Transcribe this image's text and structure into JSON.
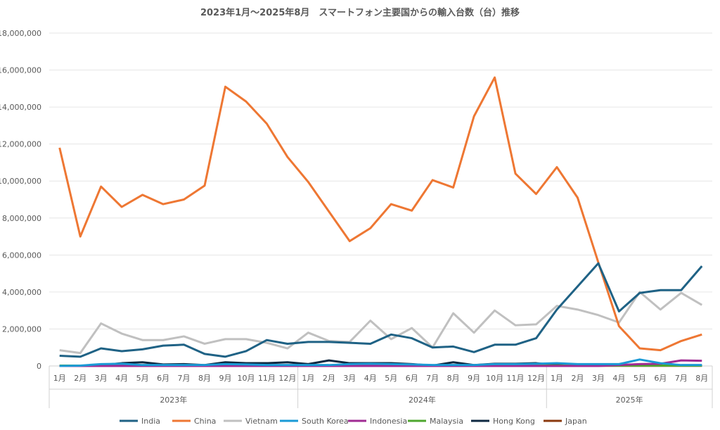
{
  "chart_data": {
    "type": "line",
    "title": "2023年1月～2025年8月　スマートフォン主要国からの輸入台数（台）推移",
    "ylim": [
      0,
      18000000
    ],
    "yticks": [
      "0",
      "2,000,000",
      "4,000,000",
      "6,000,000",
      "8,000,000",
      "10,000,000",
      "12,000,000",
      "14,000,000",
      "16,000,000",
      "18,000,000"
    ],
    "grid": true,
    "legend_position": "bottom",
    "months": [
      "1月",
      "2月",
      "3月",
      "4月",
      "5月",
      "6月",
      "7月",
      "8月",
      "9月",
      "10月",
      "11月",
      "12月",
      "1月",
      "2月",
      "3月",
      "4月",
      "5月",
      "6月",
      "7月",
      "8月",
      "9月",
      "10月",
      "11月",
      "12月",
      "1月",
      "2月",
      "3月",
      "4月",
      "5月",
      "6月",
      "7月",
      "8月"
    ],
    "years": [
      {
        "label": "2023年",
        "count": 12
      },
      {
        "label": "2024年",
        "count": 12
      },
      {
        "label": "2025年",
        "count": 8
      }
    ],
    "series": [
      {
        "name": "India",
        "color": "#1f6285",
        "values": [
          550000,
          500000,
          950000,
          800000,
          900000,
          1100000,
          1150000,
          650000,
          500000,
          800000,
          1400000,
          1200000,
          1300000,
          1300000,
          1250000,
          1200000,
          1700000,
          1500000,
          1000000,
          1050000,
          750000,
          1150000,
          1150000,
          1500000,
          3050000,
          4300000,
          5550000,
          2950000,
          3950000,
          4100000,
          4100000,
          5400000
        ]
      },
      {
        "name": "China",
        "color": "#ee7733",
        "values": [
          11800000,
          7000000,
          9700000,
          8600000,
          9250000,
          8750000,
          9000000,
          9750000,
          15100000,
          14300000,
          13100000,
          11300000,
          9950000,
          8350000,
          6750000,
          7450000,
          8750000,
          8400000,
          10050000,
          9650000,
          13500000,
          15600000,
          10400000,
          9300000,
          10750000,
          9100000,
          5600000,
          2150000,
          950000,
          850000,
          1350000,
          1700000
        ]
      },
      {
        "name": "Vietnam",
        "color": "#c0c0c0",
        "values": [
          850000,
          700000,
          2300000,
          1750000,
          1400000,
          1400000,
          1600000,
          1200000,
          1450000,
          1450000,
          1250000,
          950000,
          1800000,
          1350000,
          1300000,
          2450000,
          1450000,
          2050000,
          1000000,
          2850000,
          1800000,
          3000000,
          2200000,
          2250000,
          3250000,
          3050000,
          2750000,
          2350000,
          4000000,
          3050000,
          3950000,
          3300000
        ]
      },
      {
        "name": "South Korea",
        "color": "#1a9ad6",
        "values": [
          0,
          20000,
          100000,
          120000,
          50000,
          50000,
          50000,
          50000,
          100000,
          80000,
          50000,
          50000,
          50000,
          50000,
          100000,
          120000,
          100000,
          80000,
          50000,
          50000,
          50000,
          100000,
          100000,
          120000,
          150000,
          100000,
          100000,
          100000,
          350000,
          150000,
          50000,
          50000
        ]
      },
      {
        "name": "Indonesia",
        "color": "#a02b93",
        "values": [
          0,
          0,
          0,
          0,
          0,
          0,
          0,
          0,
          0,
          0,
          0,
          0,
          0,
          0,
          0,
          0,
          0,
          0,
          0,
          0,
          0,
          0,
          0,
          0,
          0,
          0,
          0,
          50000,
          100000,
          120000,
          300000,
          280000
        ]
      },
      {
        "name": "Malaysia",
        "color": "#4ea72e",
        "values": [
          20000,
          20000,
          20000,
          20000,
          20000,
          20000,
          20000,
          20000,
          20000,
          20000,
          20000,
          20000,
          20000,
          20000,
          20000,
          20000,
          20000,
          20000,
          20000,
          20000,
          20000,
          20000,
          20000,
          20000,
          20000,
          20000,
          20000,
          20000,
          20000,
          20000,
          20000,
          20000
        ]
      },
      {
        "name": "Hong Kong",
        "color": "#0e2841",
        "values": [
          0,
          0,
          50000,
          150000,
          200000,
          80000,
          100000,
          50000,
          200000,
          150000,
          150000,
          200000,
          100000,
          300000,
          150000,
          150000,
          150000,
          100000,
          20000,
          200000,
          50000,
          120000,
          120000,
          150000,
          50000,
          20000,
          20000,
          20000,
          20000,
          20000,
          20000,
          20000
        ]
      },
      {
        "name": "Japan",
        "color": "#8b3a0f",
        "values": [
          10000,
          10000,
          10000,
          10000,
          10000,
          10000,
          10000,
          10000,
          10000,
          10000,
          10000,
          10000,
          10000,
          10000,
          10000,
          10000,
          10000,
          10000,
          10000,
          10000,
          10000,
          10000,
          10000,
          10000,
          10000,
          10000,
          10000,
          10000,
          10000,
          10000,
          10000,
          10000
        ]
      }
    ]
  }
}
